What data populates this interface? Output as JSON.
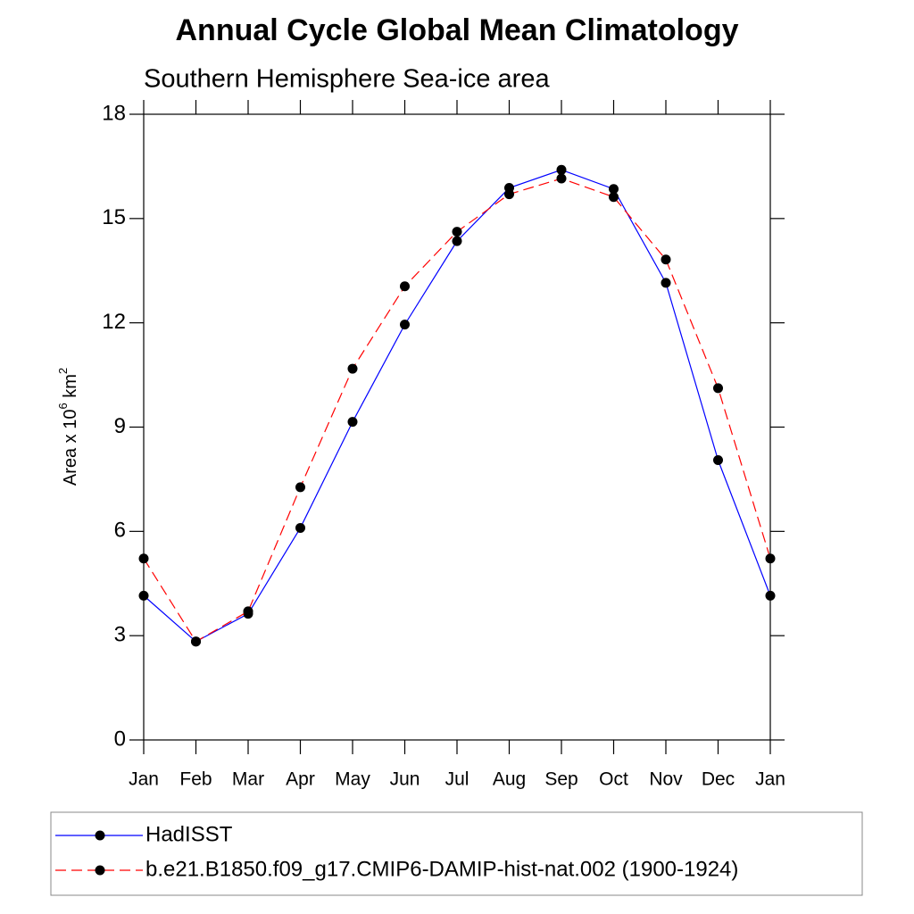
{
  "chart_data": {
    "type": "line",
    "title": "Annual Cycle Global Mean Climatology",
    "subtitle": "Southern Hemisphere Sea-ice area",
    "ylabel": {
      "base": "Area x 10",
      "exp": "6",
      "unit": " km",
      "unit_exp": "2"
    },
    "categories": [
      "Jan",
      "Feb",
      "Mar",
      "Apr",
      "May",
      "Jun",
      "Jul",
      "Aug",
      "Sep",
      "Oct",
      "Nov",
      "Dec",
      "Jan"
    ],
    "series": [
      {
        "name": "HadISST",
        "color": "#0000ff",
        "dash": false,
        "values": [
          4.15,
          2.83,
          3.63,
          6.1,
          9.15,
          11.95,
          14.35,
          15.88,
          16.4,
          15.85,
          13.15,
          8.05,
          4.15
        ]
      },
      {
        "name": "b.e21.B1850.f09_g17.CMIP6-DAMIP-hist-nat.002 (1900-1924)",
        "color": "#ff0000",
        "dash": true,
        "values": [
          5.22,
          2.83,
          3.7,
          7.27,
          10.68,
          13.05,
          14.62,
          15.7,
          16.15,
          15.62,
          13.82,
          10.12,
          5.22
        ]
      }
    ],
    "ylim": [
      0,
      18
    ],
    "yticks": [
      0,
      3,
      6,
      9,
      12,
      15,
      18
    ],
    "grid": false,
    "legend": "bottom"
  }
}
